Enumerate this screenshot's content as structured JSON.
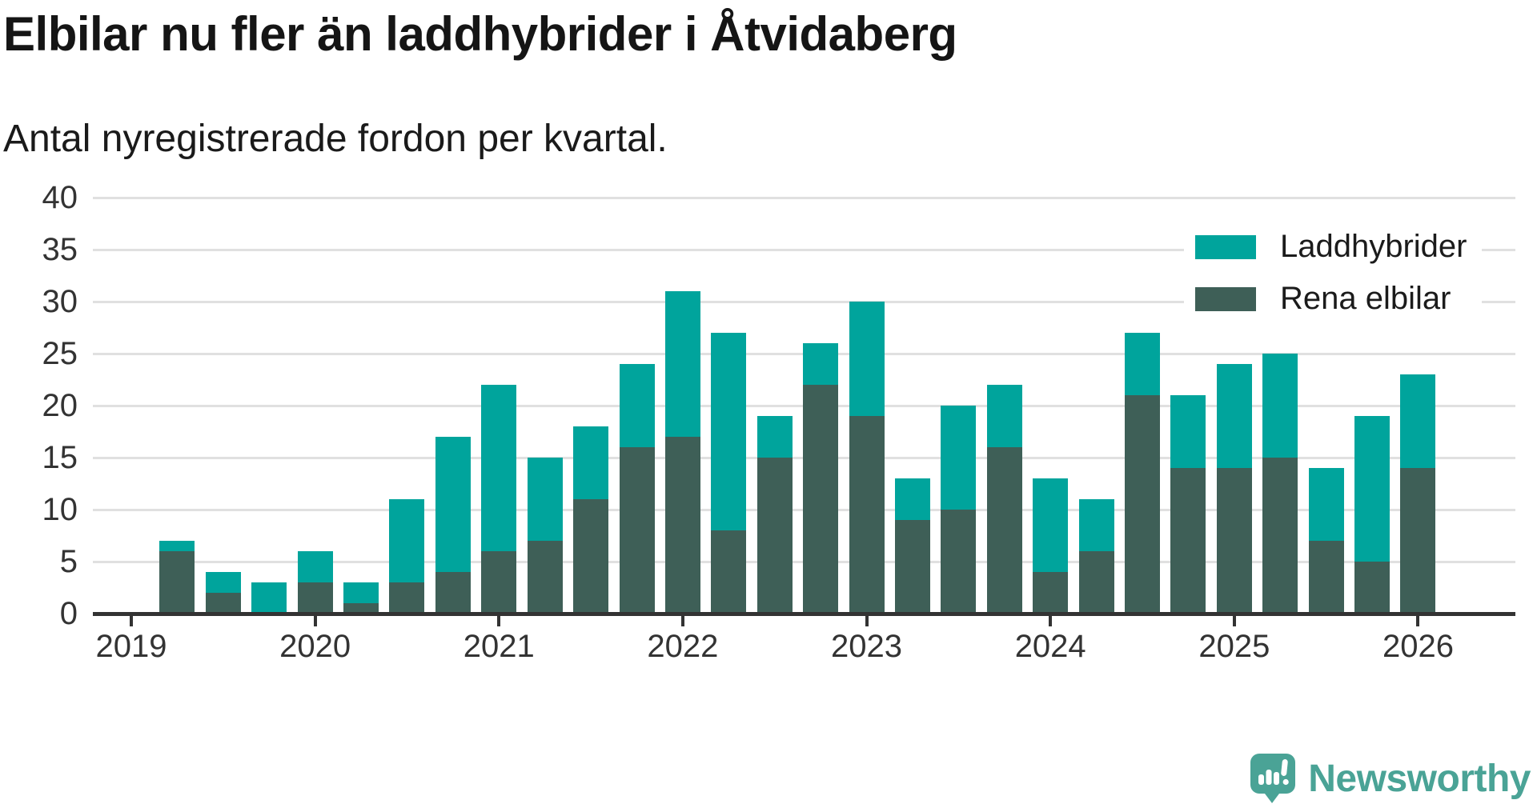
{
  "header": {
    "title": "Elbilar nu fler än laddhybrider i Åtvidaberg",
    "subtitle": "Antal nyregistrerade fordon per kvartal."
  },
  "chart_data": {
    "type": "bar",
    "stacked": true,
    "title": "Elbilar nu fler än laddhybrider i Åtvidaberg",
    "subtitle": "Antal nyregistrerade fordon per kvartal.",
    "categories": [
      "2019 Q2",
      "2019 Q3",
      "2019 Q4",
      "2020 Q1",
      "2020 Q2",
      "2020 Q3",
      "2020 Q4",
      "2021 Q1",
      "2021 Q2",
      "2021 Q3",
      "2021 Q4",
      "2022 Q1",
      "2022 Q2",
      "2022 Q3",
      "2022 Q4",
      "2023 Q1",
      "2023 Q2",
      "2023 Q3",
      "2023 Q4",
      "2024 Q1",
      "2024 Q2",
      "2024 Q3",
      "2024 Q4",
      "2025 Q1",
      "2025 Q2",
      "2025 Q3",
      "2025 Q4",
      "2026 Q1"
    ],
    "series": [
      {
        "name": "Rena elbilar",
        "color": "#3e5f57",
        "values": [
          6,
          2,
          0,
          3,
          1,
          3,
          4,
          6,
          7,
          11,
          16,
          17,
          8,
          15,
          22,
          19,
          9,
          10,
          16,
          4,
          6,
          21,
          14,
          14,
          15,
          7,
          5,
          14
        ]
      },
      {
        "name": "Laddhybrider",
        "color": "#00a49c",
        "values": [
          1,
          2,
          3,
          3,
          2,
          8,
          13,
          16,
          8,
          7,
          8,
          14,
          19,
          4,
          4,
          11,
          4,
          10,
          6,
          9,
          5,
          6,
          7,
          10,
          10,
          7,
          14,
          9
        ]
      }
    ],
    "stack_order_bottom_to_top": [
      "Rena elbilar",
      "Laddhybrider"
    ],
    "totals": [
      7,
      4,
      3,
      6,
      3,
      11,
      17,
      22,
      15,
      18,
      24,
      31,
      27,
      19,
      26,
      30,
      13,
      20,
      22,
      13,
      11,
      27,
      21,
      24,
      25,
      14,
      19,
      23
    ],
    "ylim": [
      0,
      40
    ],
    "y_ticks": [
      0,
      5,
      10,
      15,
      20,
      25,
      30,
      35,
      40
    ],
    "x_ticks": [
      {
        "label": "2019",
        "quarter_index": -1
      },
      {
        "label": "2020",
        "quarter_index": 3
      },
      {
        "label": "2021",
        "quarter_index": 7
      },
      {
        "label": "2022",
        "quarter_index": 11
      },
      {
        "label": "2023",
        "quarter_index": 15
      },
      {
        "label": "2024",
        "quarter_index": 19
      },
      {
        "label": "2025",
        "quarter_index": 23
      },
      {
        "label": "2026",
        "quarter_index": 27
      }
    ],
    "grid": true,
    "legend_position": "top-right"
  },
  "legend": {
    "items": [
      {
        "label": "Laddhybrider",
        "color": "#00a49c"
      },
      {
        "label": "Rena elbilar",
        "color": "#3e5f57"
      }
    ]
  },
  "branding": {
    "name": "Newsworthy",
    "color": "#4aa396"
  },
  "colors": {
    "axis": "#333333",
    "grid": "#e0e0e0",
    "title_text": "#151515",
    "background": "#ffffff"
  }
}
